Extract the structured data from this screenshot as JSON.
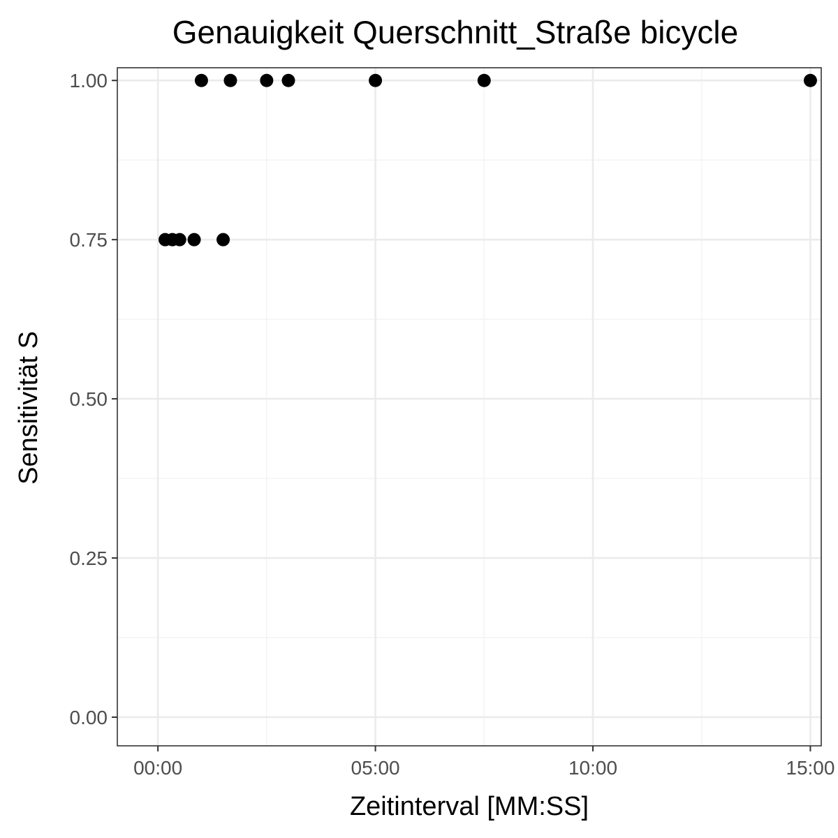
{
  "chart_data": {
    "type": "scatter",
    "title": "Genauigkeit Querschnitt_Straße bicycle",
    "xlabel": "Zeitinterval [MM:SS]",
    "ylabel": "Sensitivität S",
    "x_unit": "MM:SS",
    "xlim": [
      "-00:56",
      "15:15"
    ],
    "ylim": [
      -0.045,
      1.02
    ],
    "x_ticks": [
      "00:00",
      "05:00",
      "10:00",
      "15:00"
    ],
    "y_ticks": [
      "0.00",
      "0.25",
      "0.50",
      "0.75",
      "1.00"
    ],
    "grid": true,
    "legend": "none",
    "series": [
      {
        "points": [
          {
            "x": "00:10",
            "y": 0.75
          },
          {
            "x": "00:20",
            "y": 0.75
          },
          {
            "x": "00:30",
            "y": 0.75
          },
          {
            "x": "00:50",
            "y": 0.75
          },
          {
            "x": "01:00",
            "y": 1.0
          },
          {
            "x": "01:30",
            "y": 0.75
          },
          {
            "x": "01:40",
            "y": 1.0
          },
          {
            "x": "02:30",
            "y": 1.0
          },
          {
            "x": "03:00",
            "y": 1.0
          },
          {
            "x": "05:00",
            "y": 1.0
          },
          {
            "x": "07:30",
            "y": 1.0
          },
          {
            "x": "15:00",
            "y": 1.0
          }
        ]
      }
    ]
  },
  "colors": {
    "point": "#000000",
    "panel_border": "#333333",
    "grid_major": "#ebebeb",
    "grid_minor": "#f3f3f3",
    "tick_label": "#4d4d4d"
  }
}
